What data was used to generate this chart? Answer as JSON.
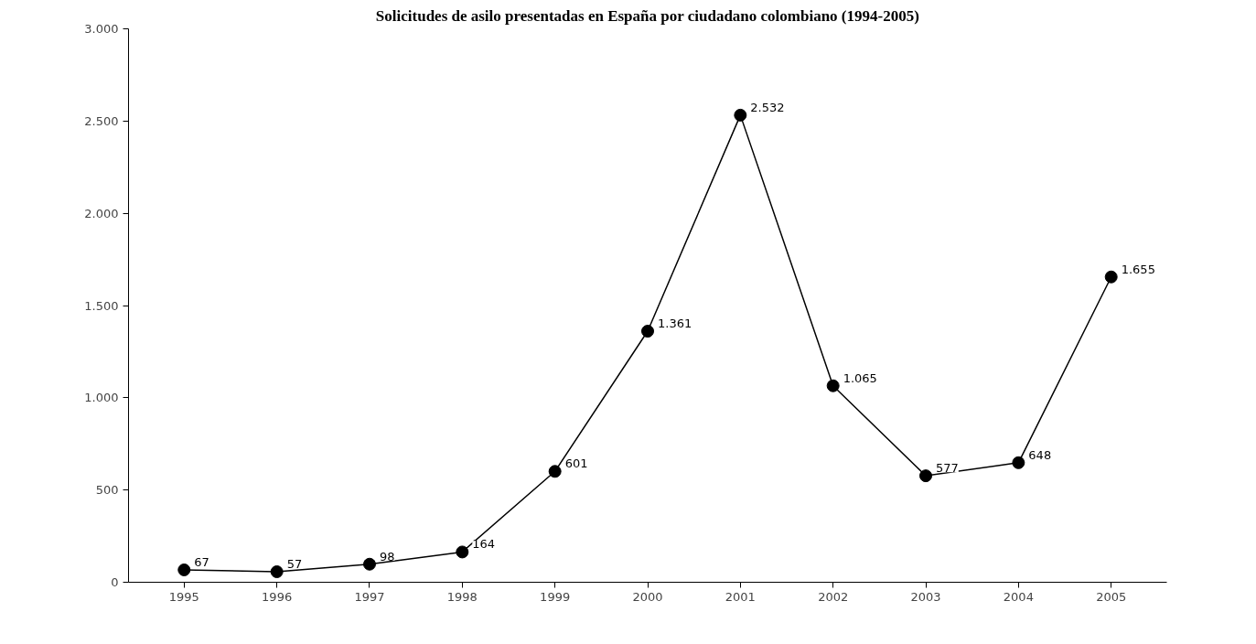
{
  "chart_data": {
    "type": "line",
    "title": "Solicitudes de asilo presentadas en España por ciudadano colombiano (1994-2005)",
    "categories": [
      "1995",
      "1996",
      "1997",
      "1998",
      "1999",
      "2000",
      "2001",
      "2002",
      "2003",
      "2004",
      "2005"
    ],
    "values": [
      67,
      57,
      98,
      164,
      601,
      1361,
      2532,
      1065,
      577,
      648,
      1655
    ],
    "value_labels": [
      "67",
      "57",
      "98",
      "164",
      "601",
      "1.361",
      "2.532",
      "1.065",
      "577",
      "648",
      "1.655"
    ],
    "color": "#000000",
    "marker": "circle",
    "line_style": "solid",
    "grid": false,
    "ylim": [
      0,
      3000
    ],
    "yticks": [
      0,
      500,
      {
        "value": 1000,
        "label": "1.000"
      },
      {
        "value": 1500,
        "label": "1.500"
      },
      {
        "value": 2000,
        "label": "2.000"
      },
      {
        "value": 2500,
        "label": "2.500"
      },
      {
        "value": 3000,
        "label": "3.000"
      }
    ]
  }
}
